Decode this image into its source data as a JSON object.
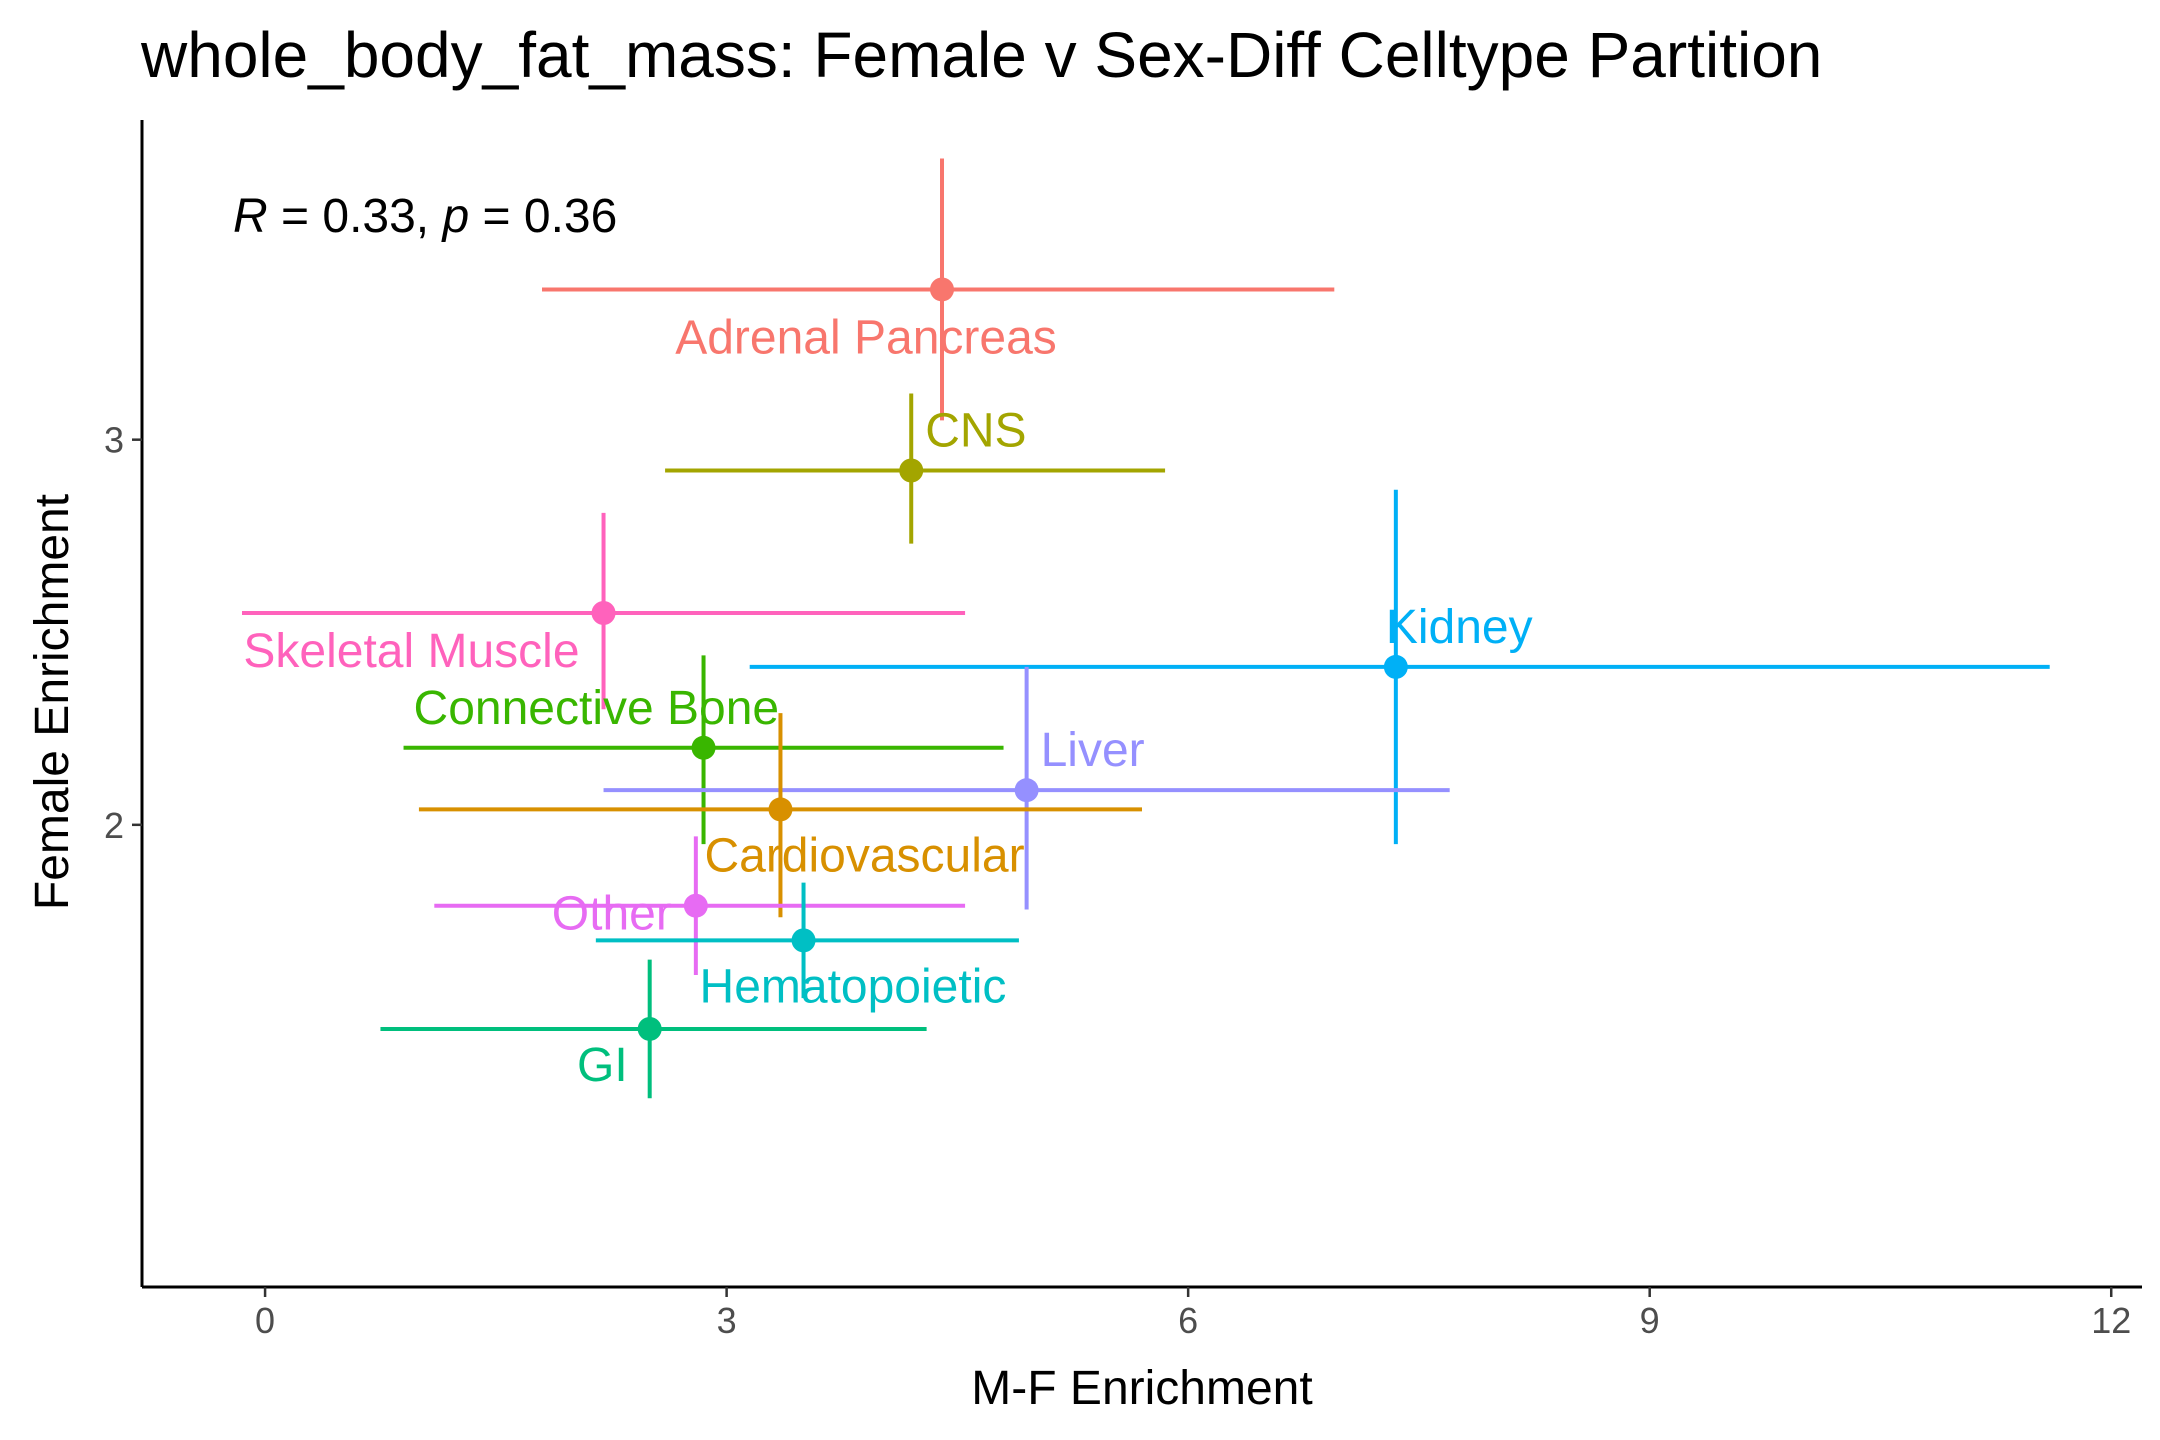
{
  "chart_data": {
    "type": "scatter",
    "title": "whole_body_fat_mass: Female v Sex-Diff Celltype Partition",
    "xlabel": "M-F Enrichment",
    "ylabel": "Female Enrichment",
    "xlim": [
      -0.8,
      12.2
    ],
    "ylim": [
      0.8,
      3.83
    ],
    "x_ticks": [
      0,
      3,
      6,
      9,
      12
    ],
    "y_ticks": [
      2,
      3
    ],
    "grid": false,
    "legend": "none",
    "annotation": {
      "R_label": "R",
      "p_label": "p",
      "R": "0.33",
      "p": "0.36"
    },
    "points": [
      {
        "name": "Adrenal Pancreas",
        "x": 4.4,
        "y": 3.39,
        "x_lo": 1.8,
        "x_hi": 6.95,
        "y_lo": 3.05,
        "y_hi": 3.73,
        "color": "#F8766D"
      },
      {
        "name": "CNS",
        "x": 4.2,
        "y": 2.92,
        "x_lo": 2.6,
        "x_hi": 5.85,
        "y_lo": 2.73,
        "y_hi": 3.12,
        "color": "#A3A500"
      },
      {
        "name": "Kidney",
        "x": 7.35,
        "y": 2.41,
        "x_lo": 3.15,
        "x_hi": 11.6,
        "y_lo": 1.95,
        "y_hi": 2.87,
        "color": "#00B0F6"
      },
      {
        "name": "Skeletal Muscle",
        "x": 2.2,
        "y": 2.55,
        "x_lo": -0.15,
        "x_hi": 4.55,
        "y_lo": 2.3,
        "y_hi": 2.81,
        "color": "#FF62BC"
      },
      {
        "name": "Connective Bone",
        "x": 2.85,
        "y": 2.2,
        "x_lo": 0.9,
        "x_hi": 4.8,
        "y_lo": 1.95,
        "y_hi": 2.44,
        "color": "#39B600"
      },
      {
        "name": "Liver",
        "x": 4.95,
        "y": 2.09,
        "x_lo": 2.2,
        "x_hi": 7.7,
        "y_lo": 1.78,
        "y_hi": 2.41,
        "color": "#9590FF"
      },
      {
        "name": "Cardiovascular",
        "x": 3.35,
        "y": 2.04,
        "x_lo": 1.0,
        "x_hi": 5.7,
        "y_lo": 1.76,
        "y_hi": 2.29,
        "color": "#D89000"
      },
      {
        "name": "Other",
        "x": 2.8,
        "y": 1.79,
        "x_lo": 1.1,
        "x_hi": 4.55,
        "y_lo": 1.61,
        "y_hi": 1.97,
        "color": "#E76BF3"
      },
      {
        "name": "Hematopoietic",
        "x": 3.5,
        "y": 1.7,
        "x_lo": 2.15,
        "x_hi": 4.9,
        "y_lo": 1.55,
        "y_hi": 1.85,
        "color": "#00BFC4"
      },
      {
        "name": "GI",
        "x": 2.5,
        "y": 1.47,
        "x_lo": 0.75,
        "x_hi": 4.3,
        "y_lo": 1.29,
        "y_hi": 1.65,
        "color": "#00BF7D"
      }
    ]
  }
}
